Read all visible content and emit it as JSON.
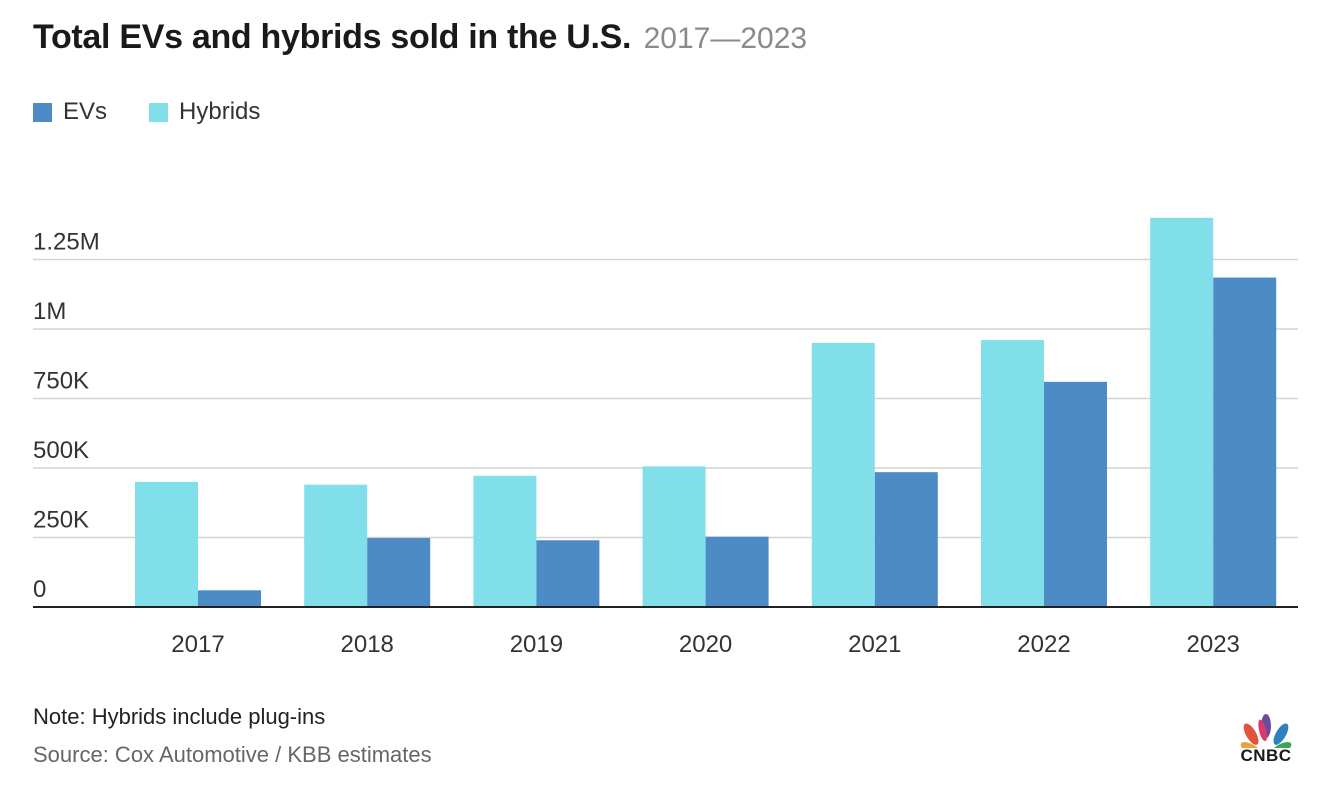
{
  "title": "Total EVs and hybrids sold in the U.S.",
  "subtitle": "2017—2023",
  "note": "Note: Hybrids include plug-ins",
  "source": "Source: Cox Automotive / KBB estimates",
  "brand": "CNBC",
  "colors": {
    "evs": "#4d8bc7",
    "hybrids": "#80dfe8",
    "grid": "#d4d4d4",
    "axis": "#222222"
  },
  "chart_data": {
    "type": "bar",
    "categories": [
      "2017",
      "2018",
      "2019",
      "2020",
      "2021",
      "2022",
      "2023"
    ],
    "series": [
      {
        "name": "Hybrids",
        "values": [
          450000,
          440000,
          472000,
          506000,
          950000,
          960000,
          1400000
        ]
      },
      {
        "name": "EVs",
        "values": [
          60000,
          248000,
          240000,
          253000,
          485000,
          810000,
          1185000
        ]
      }
    ],
    "yticks": [
      0,
      250000,
      500000,
      750000,
      1000000,
      1250000
    ],
    "ytick_labels": [
      "0",
      "250K",
      "500K",
      "750K",
      "1M",
      "1.25M"
    ],
    "ylim": [
      0,
      1400000
    ],
    "legend": [
      "EVs",
      "Hybrids"
    ],
    "legend_position": "top-left",
    "grid": true
  }
}
